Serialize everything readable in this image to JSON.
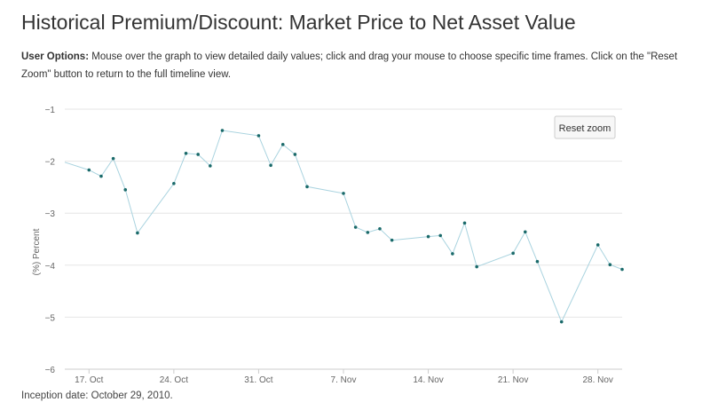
{
  "page": {
    "title": "Historical Premium/Discount: Market Price to Net Asset Value",
    "options_label": "User Options:",
    "options_text": " Mouse over the graph to view detailed daily values; click and drag your mouse to choose specific time frames. Click on the \"Reset Zoom\" button to return to the full timeline view.",
    "inception": "Inception date: October 29, 2010."
  },
  "reset_button_label": "Reset zoom",
  "colors": {
    "line": "#a9d3df",
    "marker": "#1a6a6a"
  },
  "chart_data": {
    "type": "line",
    "title": "",
    "xlabel": "",
    "ylabel": "(%) Percent",
    "ylim": [
      -6,
      -1
    ],
    "yticks": [
      -1,
      -2,
      -3,
      -4,
      -5,
      -6
    ],
    "xlim": [
      "2011-10-15",
      "2011-11-30"
    ],
    "xticks": [
      {
        "date": "2011-10-17",
        "label": "17. Oct"
      },
      {
        "date": "2011-10-24",
        "label": "24. Oct"
      },
      {
        "date": "2011-10-31",
        "label": "31. Oct"
      },
      {
        "date": "2011-11-07",
        "label": "7. Nov"
      },
      {
        "date": "2011-11-14",
        "label": "14. Nov"
      },
      {
        "date": "2011-11-21",
        "label": "21. Nov"
      },
      {
        "date": "2011-11-28",
        "label": "28. Nov"
      }
    ],
    "grid": true,
    "legend": "none",
    "series": [
      {
        "points": [
          {
            "x": "2011-10-17",
            "y": -2.17
          },
          {
            "x": "2011-10-18",
            "y": -2.29
          },
          {
            "x": "2011-10-19",
            "y": -1.95
          },
          {
            "x": "2011-10-20",
            "y": -2.55
          },
          {
            "x": "2011-10-21",
            "y": -3.38
          },
          {
            "x": "2011-10-24",
            "y": -2.43
          },
          {
            "x": "2011-10-25",
            "y": -1.85
          },
          {
            "x": "2011-10-26",
            "y": -1.87
          },
          {
            "x": "2011-10-27",
            "y": -2.09
          },
          {
            "x": "2011-10-28",
            "y": -1.41
          },
          {
            "x": "2011-10-31",
            "y": -1.51
          },
          {
            "x": "2011-11-01",
            "y": -2.08
          },
          {
            "x": "2011-11-02",
            "y": -1.68
          },
          {
            "x": "2011-11-03",
            "y": -1.87
          },
          {
            "x": "2011-11-04",
            "y": -2.49
          },
          {
            "x": "2011-11-07",
            "y": -2.62
          },
          {
            "x": "2011-11-08",
            "y": -3.27
          },
          {
            "x": "2011-11-09",
            "y": -3.37
          },
          {
            "x": "2011-11-10",
            "y": -3.3
          },
          {
            "x": "2011-11-11",
            "y": -3.52
          },
          {
            "x": "2011-11-14",
            "y": -3.45
          },
          {
            "x": "2011-11-15",
            "y": -3.43
          },
          {
            "x": "2011-11-16",
            "y": -3.78
          },
          {
            "x": "2011-11-17",
            "y": -3.19
          },
          {
            "x": "2011-11-18",
            "y": -4.03
          },
          {
            "x": "2011-11-21",
            "y": -3.77
          },
          {
            "x": "2011-11-22",
            "y": -3.36
          },
          {
            "x": "2011-11-23",
            "y": -3.93
          },
          {
            "x": "2011-11-25",
            "y": -5.09
          },
          {
            "x": "2011-11-28",
            "y": -3.61
          },
          {
            "x": "2011-11-29",
            "y": -3.99
          },
          {
            "x": "2011-11-30",
            "y": -4.08
          }
        ]
      }
    ]
  }
}
